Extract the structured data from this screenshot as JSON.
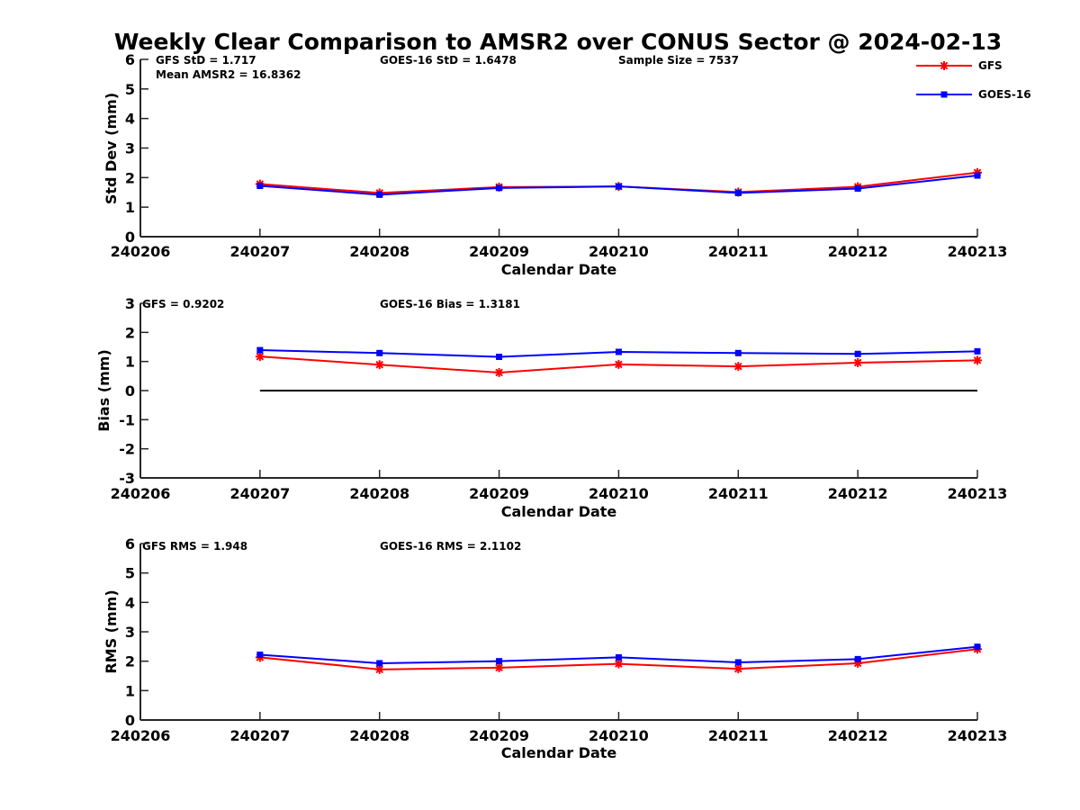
{
  "chart_data": [
    {
      "type": "line",
      "title": "Weekly Clear Comparison to AMSR2 over CONUS Sector @ 2024-02-13",
      "xlabel": "Calendar Date",
      "ylabel": "Std Dev (mm)",
      "x_ticks": [
        "240206",
        "240207",
        "240208",
        "240209",
        "240210",
        "240211",
        "240212",
        "240213"
      ],
      "y_ticks": [
        "0",
        "1",
        "2",
        "3",
        "4",
        "5",
        "6"
      ],
      "ylim": [
        0,
        6
      ],
      "categories": [
        "240207",
        "240208",
        "240209",
        "240210",
        "240211",
        "240212",
        "240213"
      ],
      "series": [
        {
          "name": "GFS",
          "color": "#ff0000",
          "marker": "asterisk",
          "values": [
            1.78,
            1.48,
            1.68,
            1.7,
            1.51,
            1.69,
            2.17
          ]
        },
        {
          "name": "GOES-16",
          "color": "#0000ff",
          "marker": "square",
          "values": [
            1.72,
            1.42,
            1.65,
            1.7,
            1.48,
            1.63,
            2.07
          ]
        }
      ],
      "annotations": [
        "GFS StD = 1.717",
        "Mean AMSR2 = 16.8362",
        "GOES-16 StD = 1.6478",
        "Sample Size = 7537"
      ],
      "legend": {
        "position": "top-right",
        "entries": [
          "GFS",
          "GOES-16"
        ]
      },
      "grid": false
    },
    {
      "type": "line",
      "xlabel": "Calendar Date",
      "ylabel": "Bias (mm)",
      "x_ticks": [
        "240206",
        "240207",
        "240208",
        "240209",
        "240210",
        "240211",
        "240212",
        "240213"
      ],
      "y_ticks": [
        "-3",
        "-2",
        "-1",
        "0",
        "1",
        "2",
        "3"
      ],
      "ylim": [
        -3,
        3
      ],
      "categories": [
        "240207",
        "240208",
        "240209",
        "240210",
        "240211",
        "240212",
        "240213"
      ],
      "zero_line": {
        "color": "#000000",
        "value": 0
      },
      "series": [
        {
          "name": "GFS",
          "color": "#ff0000",
          "marker": "asterisk",
          "values": [
            1.17,
            0.89,
            0.62,
            0.9,
            0.83,
            0.96,
            1.04
          ]
        },
        {
          "name": "GOES-16",
          "color": "#0000ff",
          "marker": "square",
          "values": [
            1.39,
            1.29,
            1.16,
            1.33,
            1.29,
            1.26,
            1.35
          ]
        }
      ],
      "annotations": [
        "GFS = 0.9202",
        "GOES-16 Bias  = 1.3181"
      ],
      "grid": false
    },
    {
      "type": "line",
      "xlabel": "Calendar Date",
      "ylabel": "RMS (mm)",
      "x_ticks": [
        "240206",
        "240207",
        "240208",
        "240209",
        "240210",
        "240211",
        "240212",
        "240213"
      ],
      "y_ticks": [
        "0",
        "1",
        "2",
        "3",
        "4",
        "5",
        "6"
      ],
      "ylim": [
        0,
        6
      ],
      "categories": [
        "240207",
        "240208",
        "240209",
        "240210",
        "240211",
        "240212",
        "240213"
      ],
      "series": [
        {
          "name": "GFS",
          "color": "#ff0000",
          "marker": "asterisk",
          "values": [
            2.13,
            1.72,
            1.78,
            1.91,
            1.74,
            1.93,
            2.41
          ]
        },
        {
          "name": "GOES-16",
          "color": "#0000ff",
          "marker": "square",
          "values": [
            2.22,
            1.93,
            2.0,
            2.13,
            1.96,
            2.07,
            2.49
          ]
        }
      ],
      "annotations": [
        "GFS RMS = 1.948",
        "GOES-16 RMS = 2.1102"
      ],
      "grid": false
    }
  ]
}
